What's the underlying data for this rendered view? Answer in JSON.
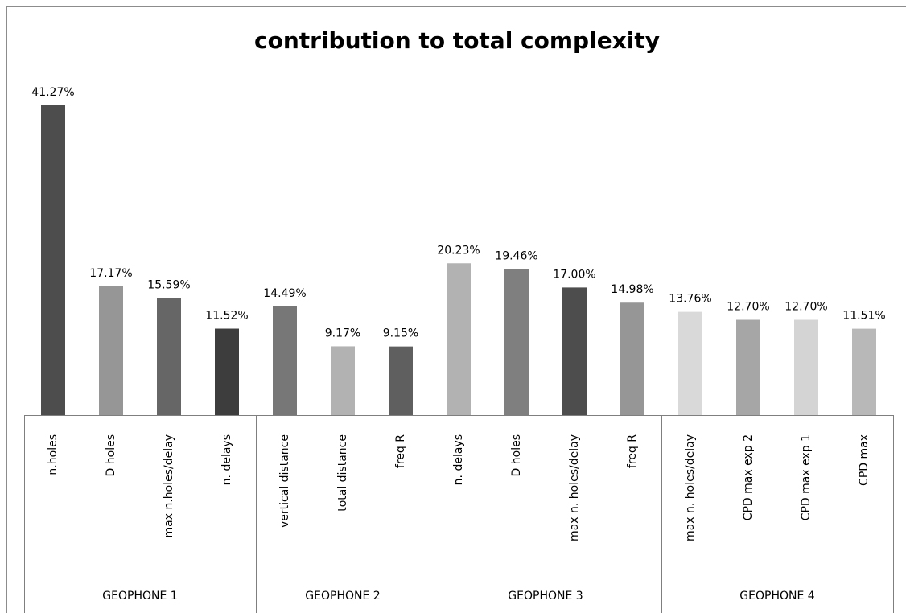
{
  "chart_data": {
    "type": "bar",
    "title": "contribution to total complexity",
    "groups": [
      {
        "name": "GEOPHONE 1",
        "categories": [
          "n.holes",
          "D holes",
          "max n.holes/delay",
          "n. delays"
        ],
        "values": [
          41.27,
          17.17,
          15.59,
          11.52
        ],
        "value_labels": [
          "41.27%",
          "17.17%",
          "15.59%",
          "11.52%"
        ],
        "colors": [
          "#4d4d4d",
          "#969696",
          "#666666",
          "#3d3d3d"
        ]
      },
      {
        "name": "GEOPHONE 2",
        "categories": [
          "vertical distance",
          "total distance",
          "freq R"
        ],
        "values": [
          14.49,
          9.17,
          9.15
        ],
        "value_labels": [
          "14.49%",
          "9.17%",
          "9.15%"
        ],
        "colors": [
          "#777777",
          "#b2b2b2",
          "#5f5f5f"
        ]
      },
      {
        "name": "GEOPHONE 3",
        "categories": [
          "n. delays",
          "D holes",
          "max n. holes/delay",
          "freq R"
        ],
        "values": [
          20.23,
          19.46,
          17.0,
          14.98
        ],
        "value_labels": [
          "20.23%",
          "19.46%",
          "17.00%",
          "14.98%"
        ],
        "colors": [
          "#b2b2b2",
          "#7f7f7f",
          "#4d4d4d",
          "#969696"
        ]
      },
      {
        "name": "GEOPHONE 4",
        "categories": [
          "max n. holes/delay",
          "CPD max exp 2",
          "CPD max exp 1",
          "CPD max"
        ],
        "values": [
          13.76,
          12.7,
          12.7,
          11.51
        ],
        "value_labels": [
          "13.76%",
          "12.70%",
          "12.70%",
          "11.51%"
        ],
        "colors": [
          "#d9d9d9",
          "#a6a6a6",
          "#d4d4d4",
          "#b8b8b8"
        ]
      }
    ]
  }
}
